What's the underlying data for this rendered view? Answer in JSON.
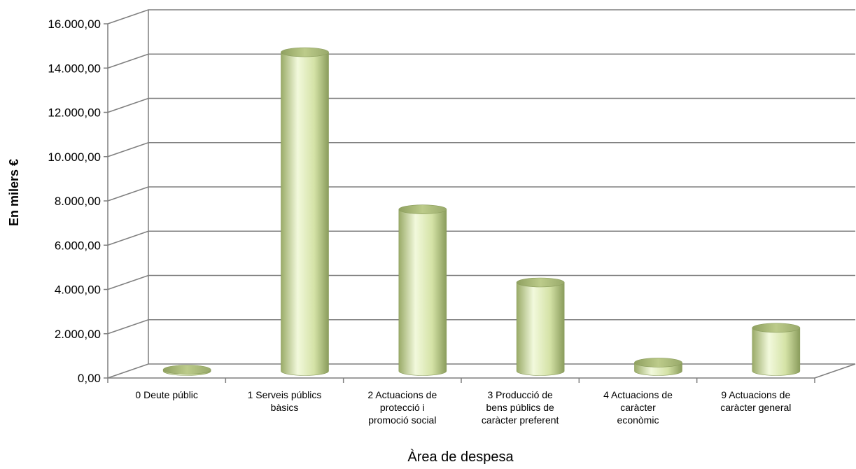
{
  "chart_data": {
    "type": "bar",
    "style": "3d-cylinder",
    "categories": [
      "0 Deute públic",
      "1 Serveis públics bàsics",
      "2 Actuacions de protecció i promoció social",
      "3 Producció de bens públics de caràcter preferent",
      "4 Actuacions de caràcter econòmic",
      "9 Actuacions de caràcter general"
    ],
    "category_lines": [
      [
        "0 Deute públic"
      ],
      [
        "1 Serveis públics",
        "bàsics"
      ],
      [
        "2 Actuacions de",
        "protecció i",
        "promoció social"
      ],
      [
        "3 Producció de",
        "bens públics de",
        "caràcter preferent"
      ],
      [
        "4 Actuacions de",
        "caràcter",
        "econòmic"
      ],
      [
        "9 Actuacions de",
        "caràcter general"
      ]
    ],
    "values": [
      60,
      14400,
      7300,
      4000,
      380,
      1950
    ],
    "ylim": [
      0,
      16000
    ],
    "yticks": [
      0,
      2000,
      4000,
      6000,
      8000,
      10000,
      12000,
      14000,
      16000
    ],
    "ytick_labels": [
      "0,00",
      "2.000,00",
      "4.000,00",
      "6.000,00",
      "8.000,00",
      "10.000,00",
      "12.000,00",
      "14.000,00",
      "16.000,00"
    ],
    "title": "",
    "xlabel": "Àrea de despesa",
    "ylabel": "En milers €",
    "grid": true,
    "legend": "none",
    "colors": {
      "bar_light": "#f0f8d8",
      "bar_mid": "#c8d89a",
      "bar_dark": "#8a9c5c",
      "bar_top": "#a8b878",
      "grid": "#7f7f7f"
    }
  }
}
